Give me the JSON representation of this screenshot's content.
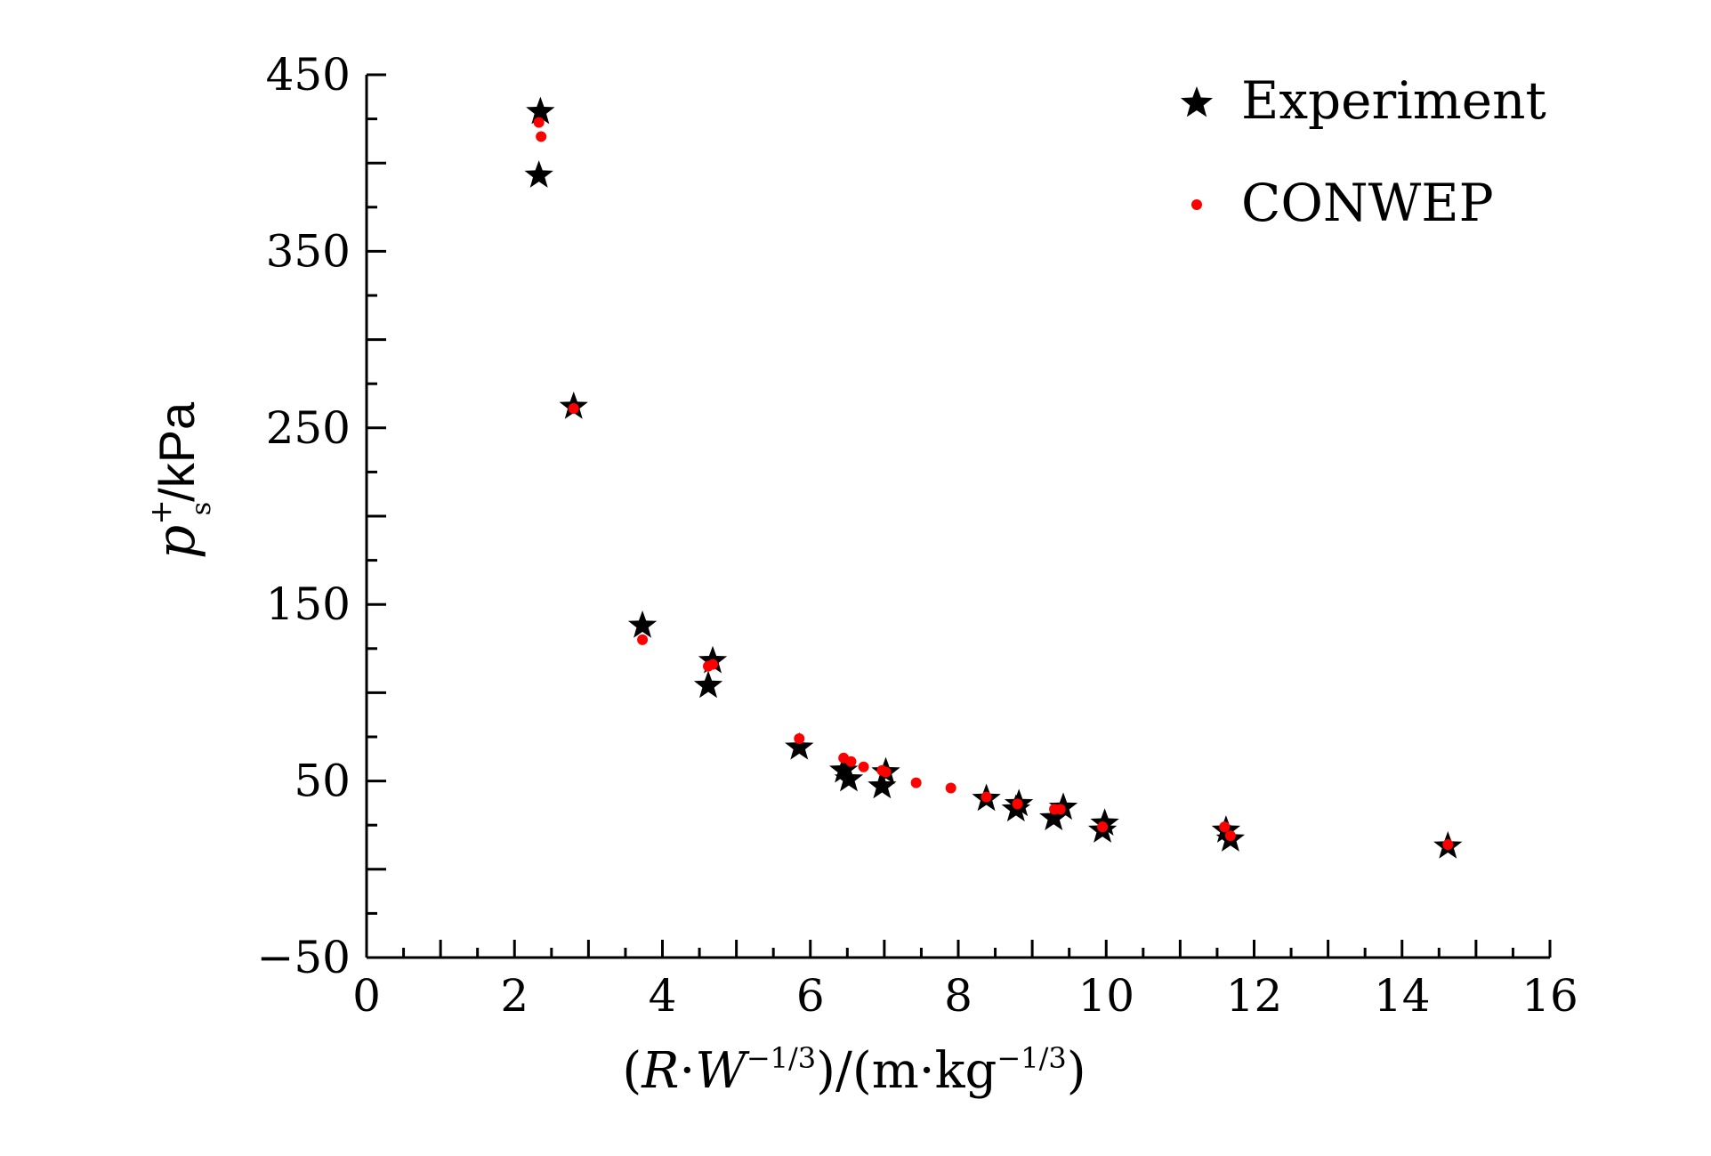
{
  "chart_data": {
    "type": "scatter",
    "xlabel": "(R·W^{−1/3})/(m·kg^{−1/3})",
    "xlabel_parts": {
      "open": "(",
      "R": "R",
      "dot1": "·",
      "W": "W",
      "exp1": "−1/3",
      "mid": ")/(m·kg",
      "exp2": "−1/3",
      "close": ")"
    },
    "ylabel": "p_s^+/kPa",
    "ylabel_parts": {
      "p": "p",
      "sup": "+",
      "sub": "s",
      "unit": "/kPa"
    },
    "xlim": [
      0,
      16
    ],
    "ylim": [
      -50,
      450
    ],
    "xticks": [
      0,
      2,
      4,
      6,
      8,
      10,
      12,
      14,
      16
    ],
    "xtick_labels": [
      "0",
      "2",
      "4",
      "6",
      "8",
      "10",
      "12",
      "14",
      "16"
    ],
    "yticks": [
      -50,
      50,
      150,
      250,
      350,
      450
    ],
    "ytick_labels": [
      "−50",
      "50",
      "150",
      "250",
      "350",
      "450"
    ],
    "legend_position": "top-right",
    "series": [
      {
        "name": "Experiment",
        "marker": "star",
        "color": "#000000",
        "x": [
          2.35,
          2.33,
          2.8,
          3.73,
          4.68,
          4.62,
          5.85,
          6.45,
          6.52,
          6.97,
          7.02,
          8.38,
          8.78,
          8.82,
          9.29,
          9.42,
          9.95,
          9.98,
          11.62,
          11.68,
          14.62
        ],
        "y": [
          429,
          393,
          262,
          138,
          118,
          104,
          69,
          56,
          51,
          47,
          55,
          40,
          34,
          37,
          29,
          35,
          22,
          26,
          22,
          17,
          13
        ]
      },
      {
        "name": "CONWEP",
        "marker": "dot",
        "color": "#ff0000",
        "x": [
          2.33,
          2.36,
          2.8,
          3.73,
          4.68,
          4.62,
          5.85,
          6.45,
          6.55,
          6.72,
          6.97,
          7.02,
          7.43,
          7.9,
          8.38,
          8.8,
          9.3,
          9.38,
          9.95,
          11.6,
          11.68,
          14.62
        ],
        "y": [
          423,
          415,
          261,
          130,
          116,
          115,
          74,
          63,
          61,
          58,
          56,
          55,
          49,
          46,
          41,
          37,
          34,
          34,
          24,
          24,
          19,
          14
        ]
      }
    ]
  }
}
